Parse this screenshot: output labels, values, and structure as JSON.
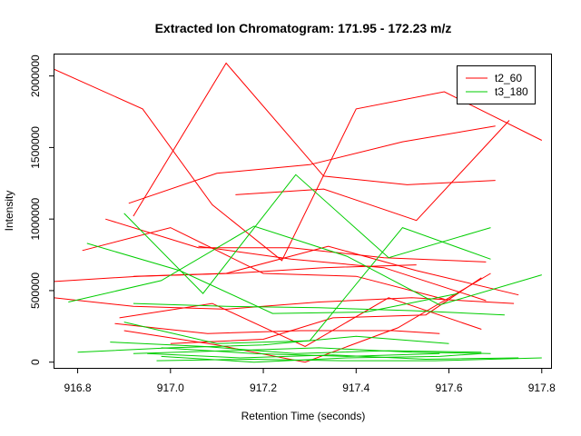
{
  "chart_data": {
    "type": "line",
    "title": "Extracted Ion Chromatogram: 171.95 - 172.23 m/z",
    "xlabel": "Retention Time (seconds)",
    "ylabel": "Intensity",
    "xlim": [
      916.75,
      917.82
    ],
    "ylim": [
      -40000,
      2150000
    ],
    "xticks": [
      916.8,
      917.0,
      917.2,
      917.4,
      917.6,
      917.8
    ],
    "xtick_labels": [
      "916.8",
      "917.0",
      "917.2",
      "917.4",
      "917.6",
      "917.8"
    ],
    "yticks": [
      0,
      500000,
      1000000,
      1500000,
      2000000
    ],
    "ytick_labels": [
      "0",
      "500000",
      "1000000",
      "1500000",
      "2000000"
    ],
    "grid": false,
    "legend_position": "top-right",
    "colors": {
      "t2_60": "#ff0000",
      "t3_180": "#00cd00"
    },
    "legend": [
      {
        "name": "t2_60",
        "color": "#ff0000"
      },
      {
        "name": "t3_180",
        "color": "#00cd00"
      }
    ],
    "series": [
      {
        "name": "t2_60",
        "points": [
          [
            916.74,
            2060000
          ],
          [
            916.94,
            1770000
          ],
          [
            917.09,
            1100000
          ],
          [
            917.24,
            710000
          ],
          [
            917.4,
            1770000
          ],
          [
            917.59,
            1890000
          ],
          [
            917.8,
            1550000
          ]
        ]
      },
      {
        "name": "t2_60",
        "points": [
          [
            916.92,
            1020000
          ],
          [
            917.12,
            2090000
          ],
          [
            917.33,
            1300000
          ],
          [
            917.51,
            1240000
          ],
          [
            917.7,
            1270000
          ]
        ]
      },
      {
        "name": "t2_60",
        "points": [
          [
            916.91,
            1110000
          ],
          [
            917.1,
            1320000
          ],
          [
            917.3,
            1380000
          ],
          [
            917.5,
            1540000
          ],
          [
            917.7,
            1650000
          ]
        ]
      },
      {
        "name": "t2_60",
        "points": [
          [
            917.14,
            1170000
          ],
          [
            917.33,
            1210000
          ],
          [
            917.53,
            990000
          ],
          [
            917.73,
            1690000
          ]
        ]
      },
      {
        "name": "t2_60",
        "points": [
          [
            916.81,
            780000
          ],
          [
            917.0,
            940000
          ],
          [
            917.2,
            620000
          ],
          [
            917.4,
            600000
          ],
          [
            917.59,
            440000
          ]
        ]
      },
      {
        "name": "t2_60",
        "points": [
          [
            916.86,
            1000000
          ],
          [
            917.06,
            800000
          ],
          [
            917.26,
            800000
          ],
          [
            917.46,
            730000
          ],
          [
            917.68,
            700000
          ]
        ]
      },
      {
        "name": "t2_60",
        "points": [
          [
            917.06,
            810000
          ],
          [
            917.26,
            720000
          ],
          [
            917.46,
            660000
          ],
          [
            917.68,
            430000
          ]
        ]
      },
      {
        "name": "t2_60",
        "points": [
          [
            916.73,
            560000
          ],
          [
            916.93,
            600000
          ],
          [
            917.13,
            620000
          ],
          [
            917.33,
            660000
          ],
          [
            917.53,
            680000
          ]
        ]
      },
      {
        "name": "t2_60",
        "points": [
          [
            916.92,
            600000
          ],
          [
            917.12,
            620000
          ],
          [
            917.34,
            810000
          ],
          [
            917.53,
            640000
          ],
          [
            917.75,
            470000
          ]
        ]
      },
      {
        "name": "t2_60",
        "points": [
          [
            916.72,
            460000
          ],
          [
            916.92,
            390000
          ],
          [
            917.12,
            370000
          ],
          [
            917.32,
            420000
          ],
          [
            917.52,
            450000
          ],
          [
            917.74,
            410000
          ]
        ]
      },
      {
        "name": "t2_60",
        "points": [
          [
            916.89,
            310000
          ],
          [
            917.09,
            410000
          ],
          [
            917.29,
            110000
          ],
          [
            917.47,
            450000
          ],
          [
            917.67,
            230000
          ]
        ]
      },
      {
        "name": "t2_60",
        "points": [
          [
            916.88,
            270000
          ],
          [
            917.08,
            200000
          ],
          [
            917.28,
            220000
          ],
          [
            917.48,
            220000
          ],
          [
            917.58,
            200000
          ]
        ]
      },
      {
        "name": "t2_60",
        "points": [
          [
            917.0,
            130000
          ],
          [
            917.2,
            160000
          ],
          [
            917.35,
            310000
          ],
          [
            917.55,
            330000
          ],
          [
            917.67,
            590000
          ]
        ]
      },
      {
        "name": "t2_60",
        "points": [
          [
            916.9,
            220000
          ],
          [
            917.1,
            120000
          ],
          [
            917.29,
            0
          ],
          [
            917.49,
            240000
          ],
          [
            917.69,
            620000
          ]
        ]
      },
      {
        "name": "t3_180",
        "points": [
          [
            916.78,
            420000
          ],
          [
            916.98,
            570000
          ],
          [
            917.18,
            950000
          ],
          [
            917.38,
            740000
          ],
          [
            917.58,
            400000
          ],
          [
            917.8,
            610000
          ]
        ]
      },
      {
        "name": "t3_180",
        "points": [
          [
            916.9,
            1040000
          ],
          [
            917.07,
            480000
          ],
          [
            917.27,
            1310000
          ],
          [
            917.47,
            730000
          ],
          [
            917.69,
            940000
          ]
        ]
      },
      {
        "name": "t3_180",
        "points": [
          [
            916.82,
            830000
          ],
          [
            917.02,
            640000
          ],
          [
            917.22,
            340000
          ],
          [
            917.42,
            350000
          ],
          [
            917.62,
            480000
          ]
        ]
      },
      {
        "name": "t3_180",
        "points": [
          [
            916.92,
            410000
          ],
          [
            917.12,
            390000
          ],
          [
            917.32,
            380000
          ],
          [
            917.52,
            360000
          ],
          [
            917.72,
            330000
          ]
        ]
      },
      {
        "name": "t3_180",
        "points": [
          [
            916.9,
            280000
          ],
          [
            917.1,
            130000
          ],
          [
            917.3,
            150000
          ],
          [
            917.5,
            940000
          ],
          [
            917.69,
            720000
          ]
        ]
      },
      {
        "name": "t3_180",
        "points": [
          [
            916.8,
            70000
          ],
          [
            917.0,
            100000
          ],
          [
            917.2,
            120000
          ],
          [
            917.4,
            180000
          ],
          [
            917.6,
            130000
          ]
        ]
      },
      {
        "name": "t3_180",
        "points": [
          [
            916.87,
            140000
          ],
          [
            917.07,
            110000
          ],
          [
            917.27,
            60000
          ],
          [
            917.47,
            80000
          ],
          [
            917.67,
            70000
          ]
        ]
      },
      {
        "name": "t3_180",
        "points": [
          [
            916.95,
            60000
          ],
          [
            917.15,
            30000
          ],
          [
            917.35,
            50000
          ],
          [
            917.55,
            20000
          ],
          [
            917.75,
            30000
          ]
        ]
      },
      {
        "name": "t3_180",
        "points": [
          [
            916.97,
            10000
          ],
          [
            917.17,
            20000
          ],
          [
            917.37,
            10000
          ],
          [
            917.57,
            10000
          ],
          [
            917.8,
            30000
          ]
        ]
      },
      {
        "name": "t3_180",
        "points": [
          [
            916.98,
            40000
          ],
          [
            917.18,
            0
          ],
          [
            917.38,
            30000
          ],
          [
            917.58,
            40000
          ],
          [
            917.67,
            60000
          ]
        ]
      },
      {
        "name": "t3_180",
        "points": [
          [
            916.92,
            60000
          ],
          [
            917.12,
            80000
          ],
          [
            917.32,
            100000
          ],
          [
            917.52,
            70000
          ],
          [
            917.69,
            60000
          ]
        ]
      },
      {
        "name": "t3_180",
        "points": [
          [
            916.98,
            100000
          ],
          [
            917.18,
            60000
          ],
          [
            917.38,
            40000
          ],
          [
            917.58,
            60000
          ]
        ]
      }
    ]
  }
}
